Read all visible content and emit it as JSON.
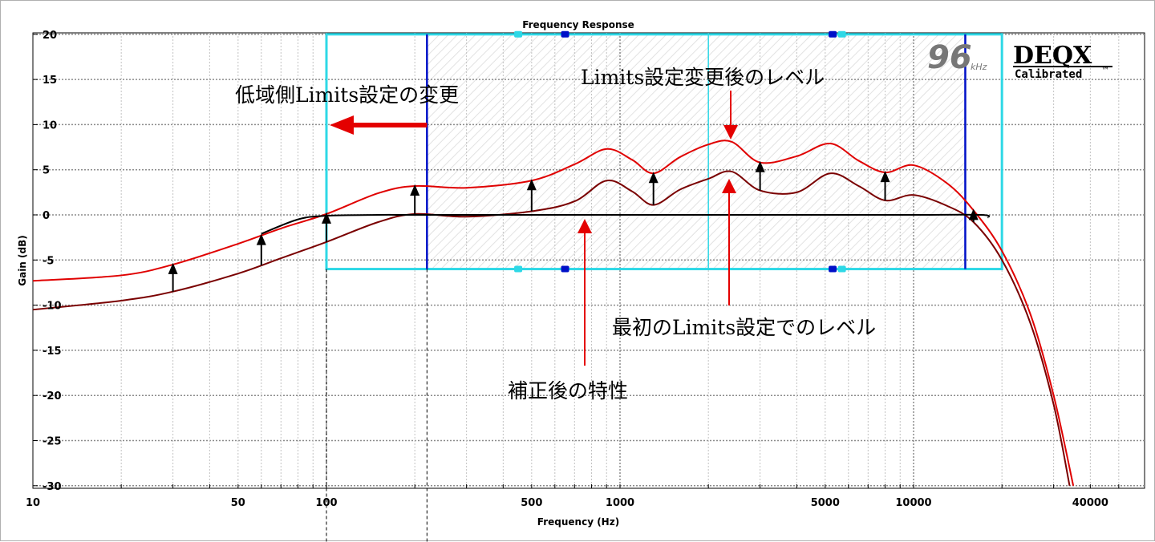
{
  "chart_data": {
    "type": "line",
    "title": "Frequency Response",
    "xlabel": "Frequency (Hz)",
    "ylabel": "Gain (dB)",
    "xscale": "log",
    "xlim": [
      10,
      60000
    ],
    "ylim": [
      -31,
      21
    ],
    "yticks": [
      20,
      15,
      10,
      5,
      0,
      -5,
      -10,
      -15,
      -20,
      -25,
      -30
    ],
    "ytick_labels": [
      "20",
      "15",
      "10",
      "5",
      "0",
      "-5",
      "-10",
      "-15",
      "-20",
      "-25",
      "-30"
    ],
    "xtick_labels": [
      {
        "value": 10,
        "label": "10"
      },
      {
        "value": 50,
        "label": "50"
      },
      {
        "value": 100,
        "label": "100"
      },
      {
        "value": 500,
        "label": "500"
      },
      {
        "value": 1000,
        "label": "1000"
      },
      {
        "value": 5000,
        "label": "5000"
      },
      {
        "value": 10000,
        "label": "10000"
      },
      {
        "value": 40000,
        "label": "40000"
      }
    ],
    "grid": true,
    "series": [
      {
        "color": "#7a0000",
        "x": [
          10,
          20,
          30,
          50,
          70,
          100,
          150,
          200,
          300,
          500,
          700,
          900,
          1100,
          1300,
          1600,
          2000,
          2400,
          3000,
          4000,
          5200,
          6500,
          8000,
          10000,
          13000,
          16000,
          20000,
          25000,
          30000,
          34000
        ],
        "y": [
          -10.5,
          -9.5,
          -8.5,
          -6.5,
          -4.8,
          -3.0,
          -0.8,
          0.1,
          -0.2,
          0.4,
          1.5,
          3.8,
          2.6,
          1.1,
          2.8,
          4.0,
          4.8,
          2.7,
          2.5,
          4.6,
          3.2,
          1.6,
          2.2,
          1.0,
          -0.8,
          -5.0,
          -12.0,
          -21.0,
          -30.0
        ]
      },
      {
        "color": "#e00000",
        "x": [
          10,
          20,
          30,
          50,
          70,
          100,
          150,
          200,
          300,
          500,
          700,
          900,
          1100,
          1300,
          1600,
          2000,
          2400,
          3000,
          4000,
          5200,
          6500,
          8000,
          10000,
          13000,
          16000,
          20000,
          25000,
          30000,
          35000
        ],
        "y": [
          -7.3,
          -6.7,
          -5.5,
          -3.2,
          -1.5,
          0.1,
          2.4,
          3.2,
          3.0,
          3.8,
          5.6,
          7.3,
          6.1,
          4.6,
          6.4,
          7.8,
          8.1,
          5.8,
          6.5,
          7.9,
          6.0,
          4.7,
          5.5,
          3.5,
          0.5,
          -4.0,
          -11.0,
          -20.0,
          -30.0
        ]
      },
      {
        "color": "#000000",
        "x": [
          60,
          80,
          100,
          150,
          200,
          500,
          1000,
          5000,
          10000,
          17000,
          18000
        ],
        "y": [
          -2.1,
          -0.5,
          -0.1,
          0,
          0,
          0,
          0,
          0,
          0,
          0,
          -0.3
        ]
      }
    ],
    "annotations": [
      {
        "text": "低域側Limits設定の変更"
      },
      {
        "text": "Limits設定変更後のレベル"
      },
      {
        "text": "最初のLimits設定でのレベル"
      },
      {
        "text": "補正後の特性"
      }
    ],
    "limits_box": {
      "x_range": [
        100,
        20000
      ],
      "y_range": [
        -6,
        20
      ]
    },
    "original_limit_freq": 220,
    "inner_limit_freq": 15000
  },
  "logo": {
    "rate": "96",
    "unit": "kHz",
    "brand": "DEQX",
    "sub": "Calibrated",
    "tm": "™"
  },
  "colors": {
    "box": "#2ed8e6",
    "limit": "#0010c8",
    "hatch": "#e6e6e6",
    "arrow_red": "#e40000"
  }
}
